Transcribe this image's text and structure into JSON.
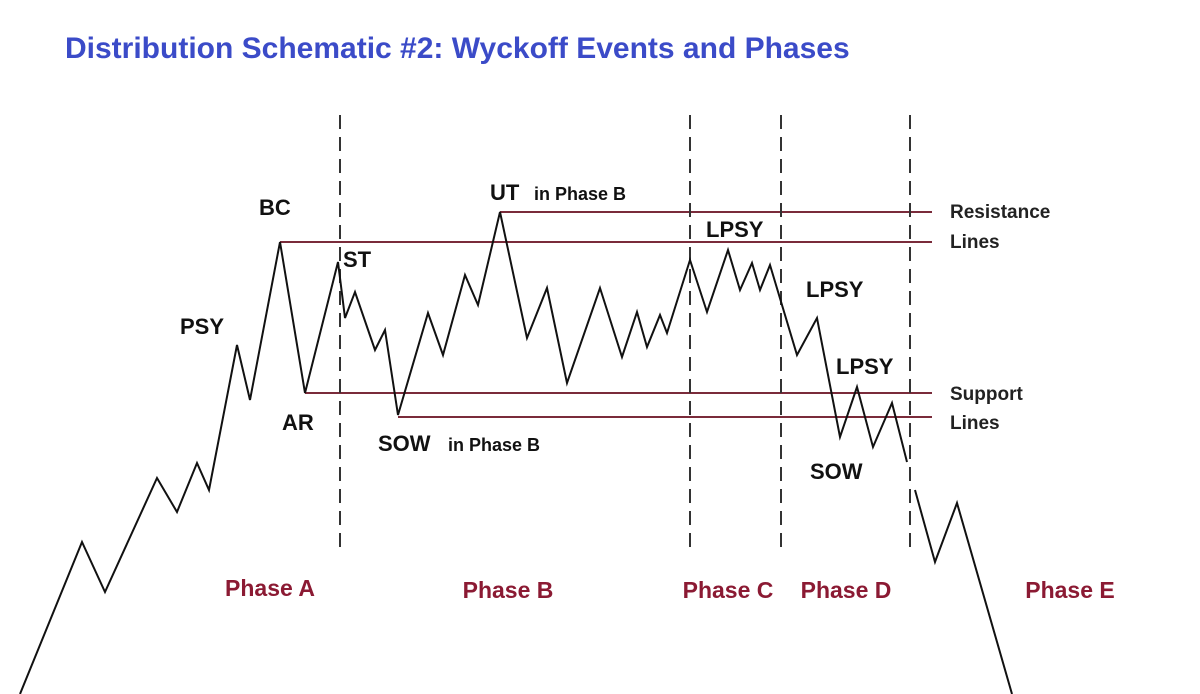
{
  "title": "Distribution Schematic #2: Wyckoff Events and Phases",
  "events": [
    {
      "label": "PSY"
    },
    {
      "label": "BC"
    },
    {
      "label": "AR"
    },
    {
      "label": "ST"
    },
    {
      "label": "UT",
      "note": "in Phase B"
    },
    {
      "label": "SOW",
      "note": "in Phase B"
    },
    {
      "label": "LPSY"
    },
    {
      "label": "LPSY"
    },
    {
      "label": "LPSY"
    },
    {
      "label": "SOW"
    }
  ],
  "legend": {
    "resistance": [
      "Resistance",
      "Lines"
    ],
    "support": [
      "Support",
      "Lines"
    ]
  },
  "phases": [
    "Phase A",
    "Phase B",
    "Phase C",
    "Phase D",
    "Phase E"
  ]
}
